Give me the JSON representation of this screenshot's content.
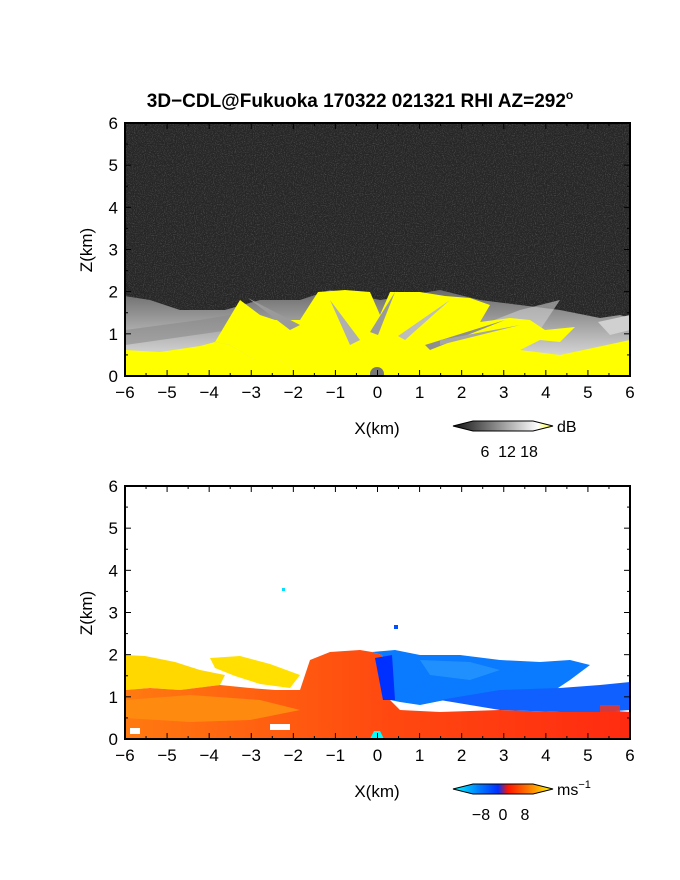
{
  "figure": {
    "title_main": "3D−CDL@Fukuoka 170322 021321 RHI AZ=292",
    "title_degree": "o"
  },
  "chart_data": [
    {
      "type": "heatmap",
      "title": "3D−CDL@Fukuoka 170322 021321 RHI AZ=292°",
      "variable": "intensity",
      "xlabel": "X(km)",
      "ylabel": "Z(km)",
      "xlim": [
        -6,
        6
      ],
      "ylim": [
        0,
        6
      ],
      "xticks": [
        -6,
        -5,
        -4,
        -3,
        -2,
        -1,
        0,
        1,
        2,
        3,
        4,
        5,
        6
      ],
      "yticks": [
        0,
        1,
        2,
        3,
        4,
        5,
        6
      ],
      "colorbar": {
        "unit": "dB",
        "ticks": [
          "6",
          "12",
          "18"
        ],
        "range": [
          0,
          20
        ],
        "colors": [
          "#111111",
          "#ffffff",
          "#ffff00"
        ]
      },
      "features": {
        "echo_top_km": 2.0,
        "saturated_above_db": 18,
        "saturated_color": "#ffff00",
        "noise_color": "#2a2a2a"
      }
    },
    {
      "type": "heatmap",
      "variable": "doppler velocity",
      "xlabel": "X(km)",
      "ylabel": "Z(km)",
      "xlim": [
        -6,
        6
      ],
      "ylim": [
        0,
        6
      ],
      "xticks": [
        -6,
        -5,
        -4,
        -3,
        -2,
        -1,
        0,
        1,
        2,
        3,
        4,
        5,
        6
      ],
      "yticks": [
        0,
        1,
        2,
        3,
        4,
        5,
        6
      ],
      "colorbar": {
        "unit": "ms",
        "unit_exponent": "−1",
        "ticks": [
          "−8",
          "0",
          "8"
        ],
        "range": [
          -10,
          10
        ],
        "colors": [
          "#00ffff",
          "#0040ff",
          "#ff2000",
          "#ffff00"
        ]
      },
      "features": {
        "echo_top_km": 2.0,
        "positive_side": "west of radar (x < 0)",
        "negative_side": "east of radar (x > 0) above 0.8 km"
      }
    }
  ]
}
